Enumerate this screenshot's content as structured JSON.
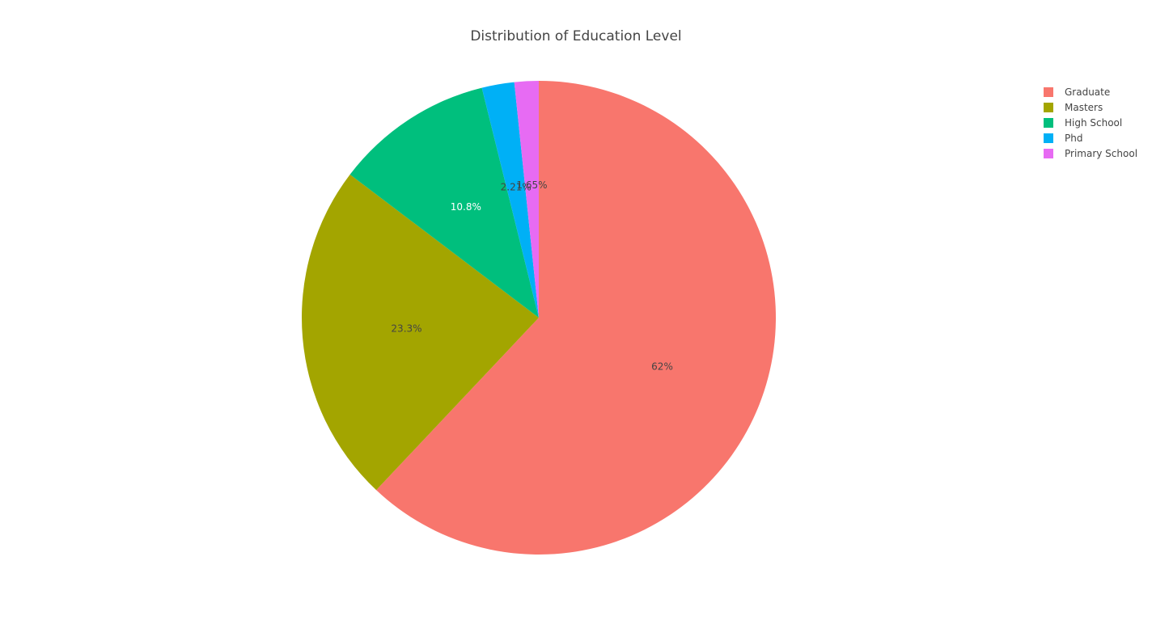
{
  "chart_data": {
    "type": "pie",
    "title": "Distribution of Education Level",
    "slices": [
      {
        "label": "Graduate",
        "value": 62.0,
        "text": "62%",
        "color": "#F8766D",
        "text_color": "#444444"
      },
      {
        "label": "Masters",
        "value": 23.3,
        "text": "23.3%",
        "color": "#A3A500",
        "text_color": "#444444"
      },
      {
        "label": "High School",
        "value": 10.8,
        "text": "10.8%",
        "color": "#00BF7D",
        "text_color": "#ffffff"
      },
      {
        "label": "Phd",
        "value": 2.21,
        "text": "2.21%",
        "color": "#00B0F6",
        "text_color": "#444444"
      },
      {
        "label": "Primary School",
        "value": 1.65,
        "text": "1.65%",
        "color": "#E76BF3",
        "text_color": "#444444"
      }
    ],
    "legend_position": "top-right",
    "direction": "clockwise",
    "rotation_start": "top"
  }
}
